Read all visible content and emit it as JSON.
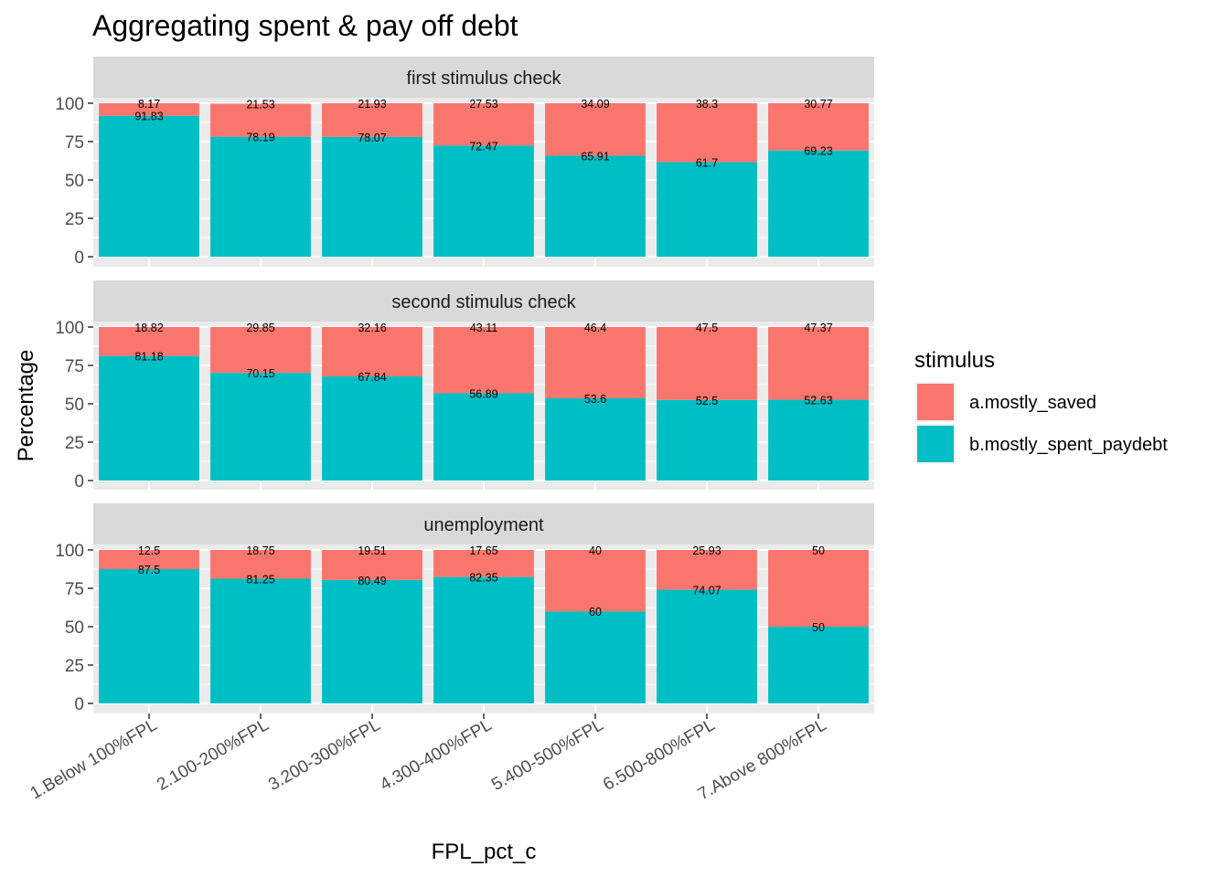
{
  "chart_data": {
    "type": "bar",
    "stacked": true,
    "title": "Aggregating spent & pay off debt",
    "xlabel": "FPL_pct_c",
    "ylabel": "Percentage",
    "ylim": [
      0,
      100
    ],
    "yticks": [
      0,
      25,
      50,
      75,
      100
    ],
    "grid": true,
    "legend_position": "right",
    "categories": [
      "1.Below 100%FPL",
      "2.100-200%FPL",
      "3.200-300%FPL",
      "4.300-400%FPL",
      "5.400-500%FPL",
      "6.500-800%FPL",
      "7.Above 800%FPL"
    ],
    "legend": {
      "title": "stimulus",
      "entries": [
        {
          "name": "a.mostly_saved",
          "color": "#F8766D"
        },
        {
          "name": "b.mostly_spent_paydebt",
          "color": "#00BFC4"
        }
      ]
    },
    "facets": [
      {
        "label": "first stimulus check",
        "series": [
          {
            "name": "a.mostly_saved",
            "values": [
              8.17,
              21.53,
              21.93,
              27.53,
              34.09,
              38.3,
              30.77
            ],
            "labels": [
              "8.17",
              "21.53",
              "21.93",
              "27.53",
              "34.09",
              "38.3",
              "30.77"
            ]
          },
          {
            "name": "b.mostly_spent_paydebt",
            "values": [
              91.83,
              78.19,
              78.07,
              72.47,
              65.91,
              61.7,
              69.23
            ],
            "labels": [
              "91.83",
              "78.19",
              "78.07",
              "72.47",
              "65.91",
              "61.7",
              "69.23"
            ]
          }
        ]
      },
      {
        "label": "second stimulus check",
        "series": [
          {
            "name": "a.mostly_saved",
            "values": [
              18.82,
              29.85,
              32.16,
              43.11,
              46.4,
              47.5,
              47.37
            ],
            "labels": [
              "18.82",
              "29.85",
              "32.16",
              "43.11",
              "46.4",
              "47.5",
              "47.37"
            ]
          },
          {
            "name": "b.mostly_spent_paydebt",
            "values": [
              81.18,
              70.15,
              67.84,
              56.89,
              53.6,
              52.5,
              52.63
            ],
            "labels": [
              "81.18",
              "70.15",
              "67.84",
              "56.89",
              "53.6",
              "52.5",
              "52.63"
            ]
          }
        ]
      },
      {
        "label": "unemployment",
        "series": [
          {
            "name": "a.mostly_saved",
            "values": [
              12.5,
              18.75,
              19.51,
              17.65,
              40,
              25.93,
              50
            ],
            "labels": [
              "12.5",
              "18.75",
              "19.51",
              "17.65",
              "40",
              "25.93",
              "50"
            ]
          },
          {
            "name": "b.mostly_spent_paydebt",
            "values": [
              87.5,
              81.25,
              80.49,
              82.35,
              60,
              74.07,
              50
            ],
            "labels": [
              "87.5",
              "81.25",
              "80.49",
              "82.35",
              "60",
              "74.07",
              "50"
            ]
          }
        ]
      }
    ]
  }
}
